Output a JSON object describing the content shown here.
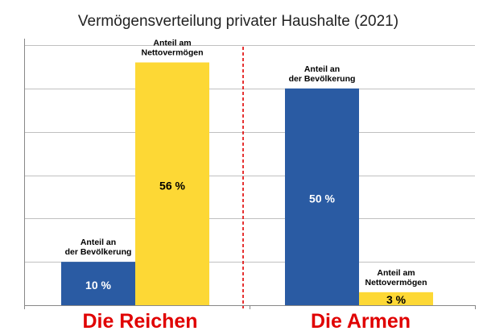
{
  "chart_data": {
    "type": "bar",
    "title": "Vermögensverteilung privater Haushalte (2021)",
    "ylim": [
      0,
      60
    ],
    "grid": true,
    "groups": [
      {
        "label": "Die Reichen",
        "bars": [
          {
            "label_lines": [
              "Anteil an",
              "der Bevölkerung"
            ],
            "value": 10,
            "value_label": "10 %",
            "color": "#2a5ba3"
          },
          {
            "label_lines": [
              "Anteil am",
              "Nettovermögen"
            ],
            "value": 56,
            "value_label": "56 %",
            "color": "#fdd835"
          }
        ]
      },
      {
        "label": "Die Armen",
        "bars": [
          {
            "label_lines": [
              "Anteil an",
              "der Bevölkerung"
            ],
            "value": 50,
            "value_label": "50 %",
            "color": "#2a5ba3"
          },
          {
            "label_lines": [
              "Anteil am",
              "Nettovermögen"
            ],
            "value": 3,
            "value_label": "3 %",
            "color": "#fdd835"
          }
        ]
      }
    ],
    "colors": {
      "population": "#2a5ba3",
      "wealth": "#fdd835",
      "group_label": "#e00000",
      "divider": "#e00000",
      "grid": "#c0c0c0"
    }
  }
}
